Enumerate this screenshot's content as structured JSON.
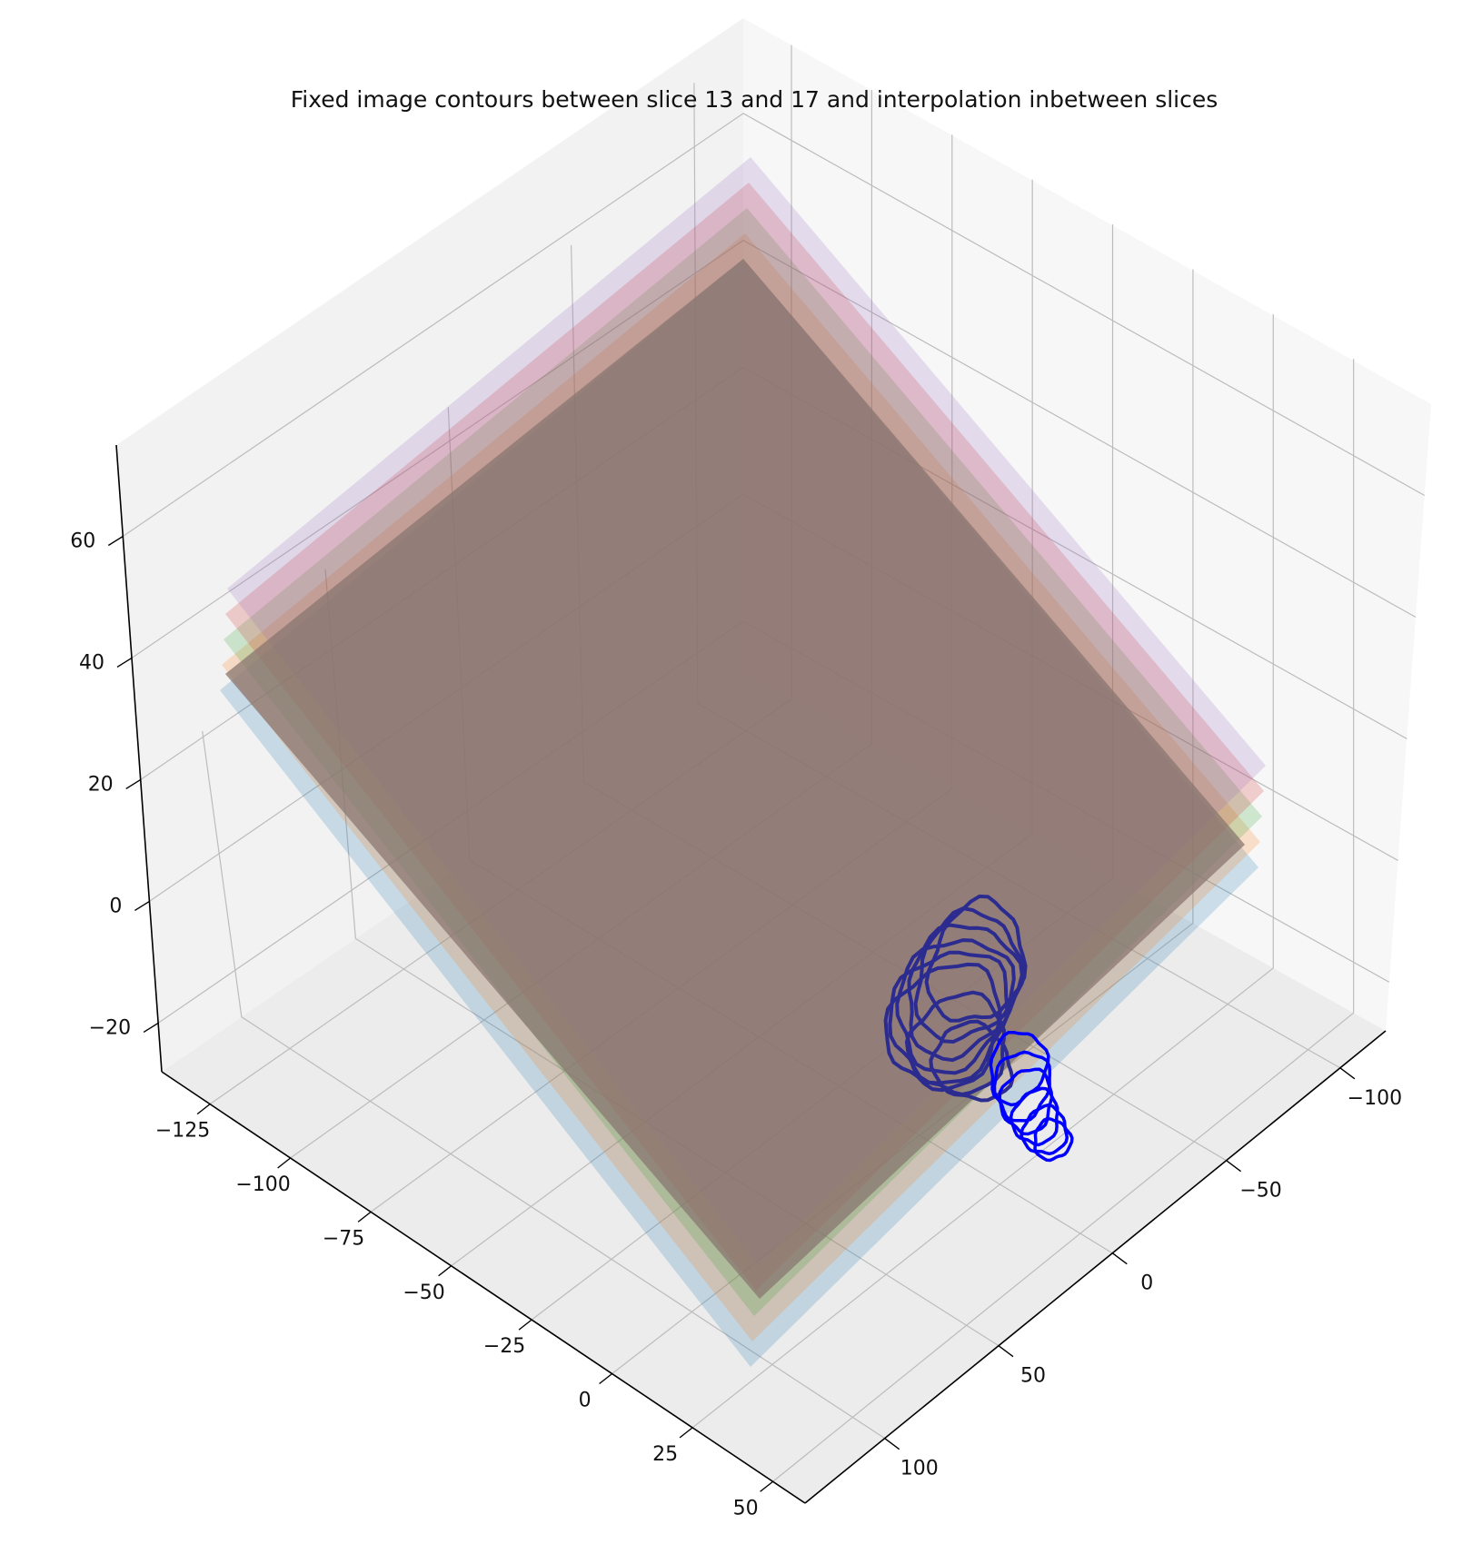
{
  "chart_data": {
    "type": "3d",
    "title": "Fixed image contours between slice 13 and 17 and interpolation inbetween slices",
    "xlabel": "",
    "ylabel": "",
    "zlabel": "",
    "grid": true,
    "axes": {
      "x": {
        "ticks": [
          -125,
          -100,
          -75,
          -50,
          -25,
          0,
          25,
          50
        ],
        "tick_labels": [
          "−125",
          "−100",
          "−75",
          "−50",
          "−25",
          "0",
          "25",
          "50"
        ]
      },
      "y": {
        "ticks": [
          -100,
          -50,
          0,
          50,
          100
        ],
        "tick_labels": [
          "−100",
          "−50",
          "0",
          "50",
          "100"
        ]
      },
      "z": {
        "ticks": [
          -20,
          0,
          20,
          40,
          60
        ],
        "tick_labels": [
          "−20",
          "0",
          "20",
          "40",
          "60"
        ]
      }
    },
    "planes": [
      {
        "slice": 13,
        "color": "#1f77b4",
        "alpha": 0.2
      },
      {
        "slice": 14,
        "color": "#ff7f0e",
        "alpha": 0.2
      },
      {
        "slice": 15,
        "color": "#2ca02c",
        "alpha": 0.2
      },
      {
        "slice": 16,
        "color": "#d62728",
        "alpha": 0.2
      },
      {
        "slice": 17,
        "color": "#9467bd",
        "alpha": 0.2
      }
    ],
    "contours": {
      "interpolated_color": "#0000ff",
      "slice_color": "#2b2b90"
    }
  }
}
